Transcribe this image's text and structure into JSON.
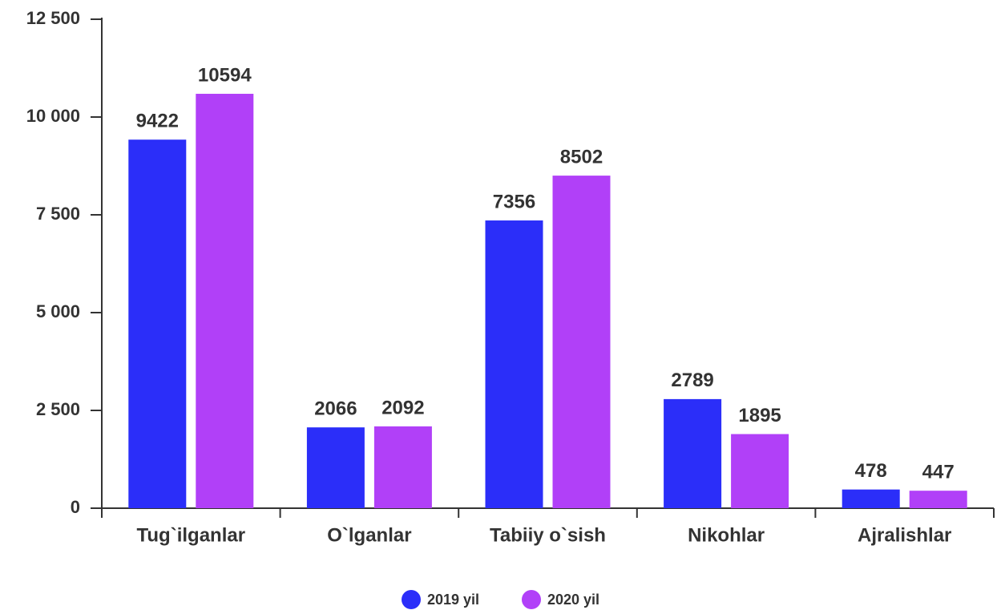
{
  "chart_data": {
    "type": "bar",
    "categories": [
      "Tug`ilganlar",
      "O`lganlar",
      "Tabiiy o`sish",
      "Nikohlar",
      "Ajralishlar"
    ],
    "series": [
      {
        "name": "2019 yil",
        "color": "#2b2ef9",
        "values": [
          9422,
          2066,
          7356,
          2789,
          478
        ]
      },
      {
        "name": "2020 yil",
        "color": "#b140f8",
        "values": [
          10594,
          2092,
          8502,
          1895,
          447
        ]
      }
    ],
    "ylim": [
      0,
      12500
    ],
    "yticks": [
      0,
      {
        "value": 2500,
        "label": "2 500"
      },
      {
        "value": 5000,
        "label": "5 000"
      },
      {
        "value": 7500,
        "label": "7 500"
      },
      {
        "value": 10000,
        "label": "10 000"
      },
      {
        "value": 12500,
        "label": "12 500"
      }
    ],
    "legend": "bottom"
  }
}
